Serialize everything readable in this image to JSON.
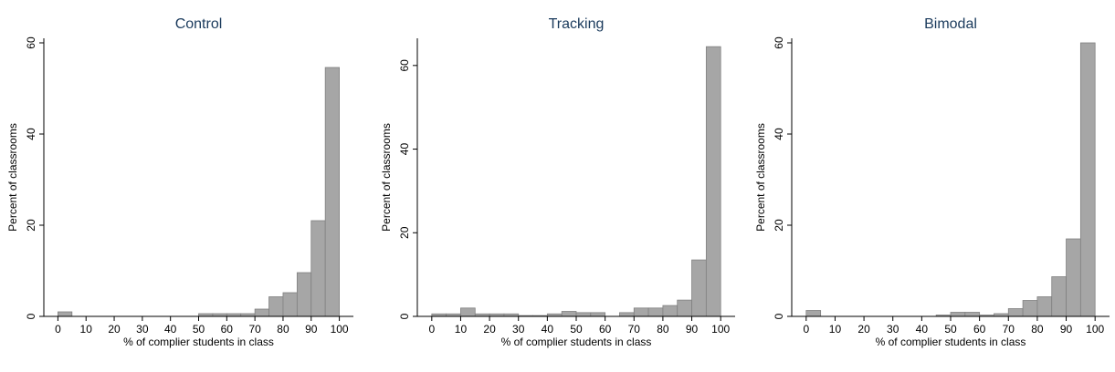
{
  "chart_data": [
    {
      "type": "histogram",
      "title": "Control",
      "xlabel": "% of complier students in class",
      "ylabel": "Percent of classrooms",
      "bins": [
        0,
        5,
        10,
        15,
        20,
        25,
        30,
        35,
        40,
        45,
        50,
        55,
        60,
        65,
        70,
        75,
        80,
        85,
        90,
        95,
        100
      ],
      "values": [
        1,
        0,
        0,
        0,
        0,
        0,
        0,
        0,
        0,
        0,
        0.6,
        0.6,
        0.6,
        0.6,
        1.6,
        4.3,
        5.2,
        9.6,
        21,
        54.6
      ],
      "color": "#a6a6a6",
      "xlim": [
        -5,
        105
      ],
      "ylim": [
        0,
        61
      ],
      "xticks": [
        0,
        10,
        20,
        30,
        40,
        50,
        60,
        70,
        80,
        90,
        100
      ],
      "yticks": [
        0,
        20,
        40,
        60
      ]
    },
    {
      "type": "histogram",
      "title": "Tracking",
      "xlabel": "% of complier students in class",
      "ylabel": "Percent of classrooms",
      "bins": [
        0,
        5,
        10,
        15,
        20,
        25,
        30,
        35,
        40,
        45,
        50,
        55,
        60,
        65,
        70,
        75,
        80,
        85,
        90,
        95,
        100
      ],
      "values": [
        0.6,
        0.6,
        2,
        0.6,
        0.6,
        0.6,
        0.2,
        0.2,
        0.6,
        1.2,
        0.9,
        0.9,
        0,
        0.9,
        2,
        2,
        2.6,
        3.9,
        13.5,
        64.5
      ],
      "color": "#a6a6a6",
      "xlim": [
        -5,
        105
      ],
      "ylim": [
        0,
        66.5
      ],
      "xticks": [
        0,
        10,
        20,
        30,
        40,
        50,
        60,
        70,
        80,
        90,
        100
      ],
      "yticks": [
        0,
        20,
        40,
        60
      ]
    },
    {
      "type": "histogram",
      "title": "Bimodal",
      "xlabel": "% of complier students in class",
      "ylabel": "Percent of classrooms",
      "bins": [
        0,
        5,
        10,
        15,
        20,
        25,
        30,
        35,
        40,
        45,
        50,
        55,
        60,
        65,
        70,
        75,
        80,
        85,
        90,
        95,
        100
      ],
      "values": [
        1.3,
        0,
        0,
        0,
        0,
        0,
        0,
        0,
        0,
        0.3,
        0.9,
        0.9,
        0.3,
        0.6,
        1.7,
        3.5,
        4.3,
        8.7,
        17,
        60
      ],
      "color": "#a6a6a6",
      "xlim": [
        -5,
        105
      ],
      "ylim": [
        0,
        61
      ],
      "xticks": [
        0,
        10,
        20,
        30,
        40,
        50,
        60,
        70,
        80,
        90,
        100
      ],
      "yticks": [
        0,
        20,
        40,
        60
      ]
    }
  ]
}
